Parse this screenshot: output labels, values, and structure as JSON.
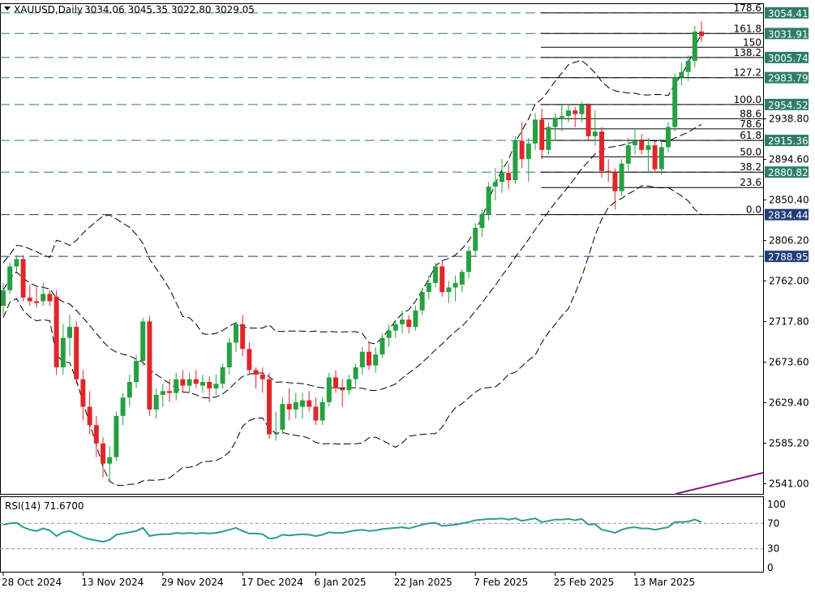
{
  "header": {
    "title": "XAUUSD,Daily",
    "ohlc": "3034.06 3045.35 3022.80 3029.05"
  },
  "rsi_header": "RSI(14) 71.6700",
  "price_axis": [
    "2541.00",
    "2585.20",
    "2629.40",
    "2673.60",
    "2717.80",
    "2762.00",
    "2806.20",
    "2850.40",
    "2894.60",
    "2938.80"
  ],
  "rsi_axis": [
    "100",
    "70",
    "30",
    "0"
  ],
  "date_axis": [
    "28 Oct 2024",
    "13 Nov 2024",
    "29 Nov 2024",
    "17 Dec 2024",
    "6 Jan 2025",
    "22 Jan 2025",
    "7 Feb 2025",
    "25 Feb 2025",
    "13 Mar 2025"
  ],
  "price_tags": [
    {
      "label": "3054.41",
      "value": 3054.41,
      "color": "#2e7d6b"
    },
    {
      "label": "3031.91",
      "value": 3031.91,
      "color": "#2e7d6b"
    },
    {
      "label": "3005.74",
      "value": 3005.74,
      "color": "#2e7d6b"
    },
    {
      "label": "2983.79",
      "value": 2983.79,
      "color": "#2e7d6b"
    },
    {
      "label": "2954.52",
      "value": 2954.52,
      "color": "#2e7d6b"
    },
    {
      "label": "2915.36",
      "value": 2915.36,
      "color": "#2e7d6b"
    },
    {
      "label": "2880.82",
      "value": 2880.82,
      "color": "#2e7d6b"
    },
    {
      "label": "2834.44",
      "value": 2834.44,
      "color": "#1f3f77"
    },
    {
      "label": "2788.95",
      "value": 2788.95,
      "color": "#1f3f77"
    }
  ],
  "fib_levels": [
    {
      "label": "178.6",
      "value": 3054.41
    },
    {
      "label": "161.8",
      "value": 3031.91
    },
    {
      "label": "150",
      "value": 3016.9
    },
    {
      "label": "138.2",
      "value": 3005.74
    },
    {
      "label": "127.2",
      "value": 2983.79
    },
    {
      "label": "100.0",
      "value": 2954.52
    },
    {
      "label": "88.6",
      "value": 2939.0
    },
    {
      "label": "78.6",
      "value": 2928.0
    },
    {
      "label": "61.8",
      "value": 2915.36
    },
    {
      "label": "50.0",
      "value": 2897.5
    },
    {
      "label": "38.2",
      "value": 2880.82
    },
    {
      "label": "23.6",
      "value": 2864.0
    },
    {
      "label": "0.0",
      "value": 2834.44
    }
  ],
  "colors": {
    "bull": "#26a041",
    "bear": "#e0262b",
    "band": "#000000",
    "level": "#2e7d6b",
    "trend": "#8b1a8b"
  },
  "chart_data": {
    "type": "candlestick",
    "symbol": "XAUUSD",
    "timeframe": "Daily",
    "ylim": [
      2530,
      3064
    ],
    "rsi_ylim": [
      0,
      100
    ],
    "rsi_levels": [
      70,
      30
    ],
    "candles": [
      [
        2735,
        2760,
        2725,
        2752
      ],
      [
        2752,
        2782,
        2748,
        2778
      ],
      [
        2778,
        2790,
        2770,
        2786
      ],
      [
        2786,
        2790,
        2740,
        2744
      ],
      [
        2744,
        2758,
        2735,
        2740
      ],
      [
        2740,
        2755,
        2733,
        2738
      ],
      [
        2740,
        2760,
        2735,
        2748
      ],
      [
        2748,
        2752,
        2735,
        2740
      ],
      [
        2745,
        2752,
        2660,
        2668
      ],
      [
        2668,
        2715,
        2660,
        2700
      ],
      [
        2700,
        2725,
        2680,
        2712
      ],
      [
        2712,
        2718,
        2650,
        2655
      ],
      [
        2655,
        2665,
        2610,
        2625
      ],
      [
        2625,
        2642,
        2595,
        2605
      ],
      [
        2605,
        2615,
        2570,
        2585
      ],
      [
        2585,
        2592,
        2548,
        2563
      ],
      [
        2563,
        2582,
        2545,
        2570
      ],
      [
        2570,
        2620,
        2566,
        2615
      ],
      [
        2615,
        2640,
        2605,
        2635
      ],
      [
        2635,
        2660,
        2625,
        2652
      ],
      [
        2652,
        2682,
        2645,
        2675
      ],
      [
        2675,
        2722,
        2670,
        2718
      ],
      [
        2718,
        2724,
        2615,
        2622
      ],
      [
        2622,
        2645,
        2612,
        2638
      ],
      [
        2638,
        2650,
        2625,
        2642
      ],
      [
        2642,
        2655,
        2630,
        2640
      ],
      [
        2640,
        2662,
        2632,
        2655
      ],
      [
        2655,
        2665,
        2640,
        2648
      ],
      [
        2648,
        2662,
        2640,
        2655
      ],
      [
        2655,
        2665,
        2645,
        2650
      ],
      [
        2648,
        2660,
        2640,
        2652
      ],
      [
        2652,
        2658,
        2630,
        2645
      ],
      [
        2645,
        2660,
        2638,
        2650
      ],
      [
        2650,
        2672,
        2645,
        2668
      ],
      [
        2668,
        2700,
        2660,
        2695
      ],
      [
        2695,
        2718,
        2685,
        2715
      ],
      [
        2715,
        2725,
        2680,
        2688
      ],
      [
        2688,
        2695,
        2660,
        2665
      ],
      [
        2665,
        2668,
        2645,
        2660
      ],
      [
        2660,
        2668,
        2640,
        2655
      ],
      [
        2655,
        2662,
        2590,
        2595
      ],
      [
        2595,
        2620,
        2588,
        2596
      ],
      [
        2600,
        2635,
        2595,
        2628
      ],
      [
        2628,
        2645,
        2610,
        2622
      ],
      [
        2622,
        2640,
        2612,
        2630
      ],
      [
        2625,
        2640,
        2612,
        2632
      ],
      [
        2632,
        2642,
        2620,
        2625
      ],
      [
        2625,
        2635,
        2605,
        2610
      ],
      [
        2610,
        2635,
        2605,
        2630
      ],
      [
        2630,
        2662,
        2625,
        2657
      ],
      [
        2657,
        2665,
        2640,
        2645
      ],
      [
        2645,
        2655,
        2625,
        2643
      ],
      [
        2643,
        2660,
        2638,
        2655
      ],
      [
        2655,
        2672,
        2648,
        2668
      ],
      [
        2668,
        2690,
        2660,
        2685
      ],
      [
        2685,
        2695,
        2665,
        2670
      ],
      [
        2670,
        2690,
        2662,
        2682
      ],
      [
        2682,
        2705,
        2678,
        2700
      ],
      [
        2700,
        2715,
        2690,
        2708
      ],
      [
        2708,
        2720,
        2700,
        2715
      ],
      [
        2715,
        2730,
        2705,
        2720
      ],
      [
        2720,
        2725,
        2705,
        2712
      ],
      [
        2712,
        2735,
        2708,
        2730
      ],
      [
        2730,
        2755,
        2725,
        2750
      ],
      [
        2750,
        2768,
        2742,
        2760
      ],
      [
        2760,
        2782,
        2755,
        2778
      ],
      [
        2778,
        2785,
        2745,
        2750
      ],
      [
        2750,
        2762,
        2738,
        2755
      ],
      [
        2755,
        2768,
        2740,
        2760
      ],
      [
        2758,
        2775,
        2750,
        2772
      ],
      [
        2772,
        2800,
        2765,
        2795
      ],
      [
        2795,
        2825,
        2788,
        2820
      ],
      [
        2820,
        2840,
        2810,
        2835
      ],
      [
        2835,
        2870,
        2828,
        2865
      ],
      [
        2865,
        2885,
        2850,
        2870
      ],
      [
        2870,
        2895,
        2858,
        2880
      ],
      [
        2880,
        2890,
        2862,
        2872
      ],
      [
        2872,
        2920,
        2868,
        2915
      ],
      [
        2915,
        2935,
        2885,
        2895
      ],
      [
        2895,
        2918,
        2870,
        2912
      ],
      [
        2912,
        2945,
        2905,
        2938
      ],
      [
        2938,
        2950,
        2895,
        2905
      ],
      [
        2905,
        2935,
        2900,
        2930
      ],
      [
        2930,
        2945,
        2915,
        2940
      ],
      [
        2940,
        2955,
        2925,
        2942
      ],
      [
        2942,
        2955,
        2935,
        2948
      ],
      [
        2948,
        2952,
        2930,
        2944
      ],
      [
        2944,
        2958,
        2935,
        2954
      ],
      [
        2954,
        2956,
        2915,
        2920
      ],
      [
        2920,
        2948,
        2910,
        2925
      ],
      [
        2925,
        2930,
        2875,
        2882
      ],
      [
        2882,
        2895,
        2870,
        2880
      ],
      [
        2880,
        2885,
        2840,
        2860
      ],
      [
        2860,
        2895,
        2855,
        2890
      ],
      [
        2890,
        2918,
        2880,
        2910
      ],
      [
        2910,
        2928,
        2900,
        2915
      ],
      [
        2915,
        2922,
        2900,
        2905
      ],
      [
        2905,
        2918,
        2880,
        2910
      ],
      [
        2910,
        2915,
        2880,
        2884
      ],
      [
        2884,
        2915,
        2878,
        2908
      ],
      [
        2908,
        2935,
        2902,
        2930
      ],
      [
        2930,
        2988,
        2925,
        2984
      ],
      [
        2984,
        3000,
        2975,
        2990
      ],
      [
        2990,
        3008,
        2980,
        3002
      ],
      [
        3002,
        3040,
        2995,
        3034
      ],
      [
        3034.06,
        3045.35,
        3022.8,
        3029.05
      ]
    ],
    "rsi": [
      68,
      70,
      71,
      64,
      60,
      58,
      62,
      59,
      50,
      56,
      58,
      53,
      48,
      45,
      43,
      41,
      44,
      52,
      54,
      56,
      58,
      63,
      50,
      52,
      53,
      53,
      55,
      54,
      55,
      54,
      55,
      54,
      55,
      57,
      60,
      63,
      58,
      54,
      54,
      53,
      46,
      47,
      52,
      51,
      52,
      53,
      52,
      50,
      52,
      56,
      55,
      55,
      57,
      59,
      60,
      58,
      59,
      61,
      62,
      63,
      64,
      62,
      65,
      68,
      70,
      71,
      66,
      67,
      68,
      70,
      72,
      75,
      76,
      77,
      77,
      78,
      76,
      78,
      74,
      76,
      78,
      72,
      74,
      76,
      76,
      77,
      75,
      77,
      68,
      69,
      60,
      58,
      55,
      60,
      63,
      64,
      62,
      62,
      60,
      62,
      64,
      72,
      72,
      73,
      76,
      72
    ]
  }
}
